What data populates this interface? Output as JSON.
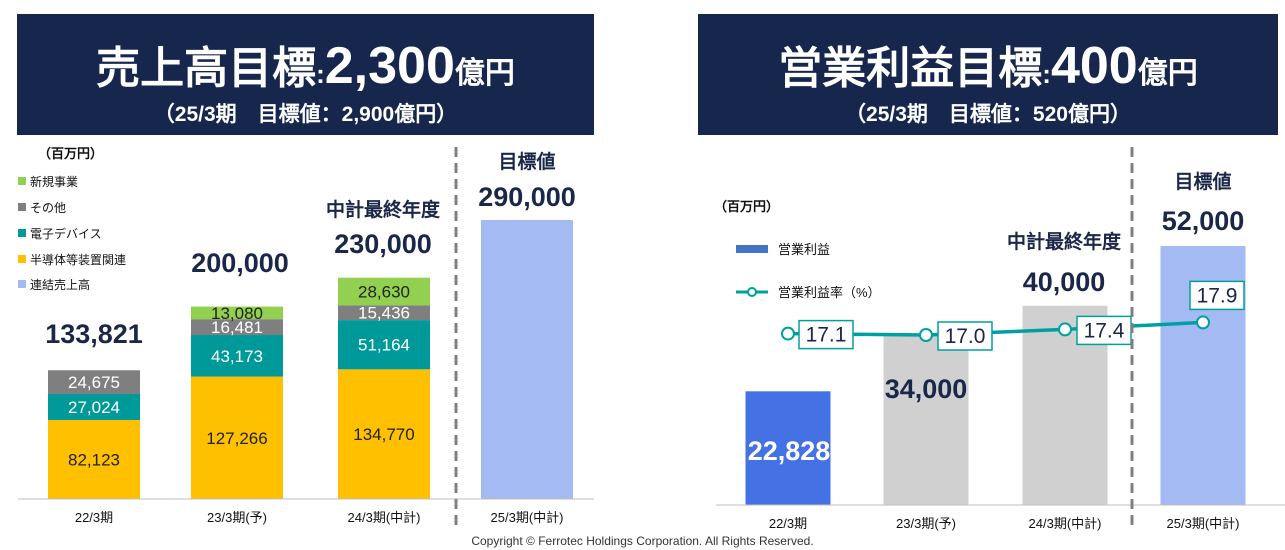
{
  "left_banner": {
    "title": "売上高目標",
    "sep": ":",
    "value": "2,300",
    "unit": "億円",
    "sub": "（25/3期　目標値：2,900億円）"
  },
  "right_banner": {
    "title": "営業利益目標",
    "sep": ":",
    "value": "400",
    "unit": "億円",
    "sub": "（25/3期　目標値：520億円）"
  },
  "footer": "Copyright © Ferrotec Holdings Corporation. All Rights Reserved.",
  "chart_data": [
    {
      "type": "bar",
      "stacked": true,
      "unit_label": "（百万円）",
      "categories": [
        "22/3期",
        "23/3期(予)",
        "24/3期(中計)",
        "25/3期(中計)"
      ],
      "series": [
        {
          "name": "半導体等装置関連",
          "color": "#ffc000",
          "values": [
            82123,
            127266,
            134770,
            null
          ]
        },
        {
          "name": "電子デバイス",
          "color": "#009999",
          "values": [
            27024,
            43173,
            51164,
            null
          ]
        },
        {
          "name": "その他",
          "color": "#7f7f7f",
          "values": [
            24675,
            16481,
            15436,
            null
          ]
        },
        {
          "name": "新規事業",
          "color": "#92d050",
          "values": [
            0,
            13080,
            28630,
            null
          ]
        },
        {
          "name": "連結売上高",
          "color": "#a4baf2",
          "values": [
            null,
            null,
            null,
            290000
          ]
        }
      ],
      "legend_order": [
        "新規事業",
        "その他",
        "電子デバイス",
        "半導体等装置関連",
        "連結売上高"
      ],
      "totals": [
        "133,821",
        "200,000",
        "230,000",
        "290,000"
      ],
      "annotations": {
        "midterm_final": "中計最終年度",
        "target": "目標値"
      },
      "ylim": [
        0,
        300000
      ]
    },
    {
      "type": "bar+line",
      "unit_label": "（百万円）",
      "categories": [
        "22/3期",
        "23/3期(予)",
        "24/3期(中計)",
        "25/3期(中計)"
      ],
      "bar_series": {
        "name": "営業利益",
        "values": [
          22828,
          34000,
          40000,
          52000
        ],
        "labels": [
          "22,828",
          "34,000",
          "40,000",
          "52,000"
        ],
        "colors": [
          "#4472e4",
          "#d0d0d0",
          "#d0d0d0",
          "#a4baf2"
        ]
      },
      "line_series": {
        "name": "営業利益率（%）",
        "color": "#00a0a0",
        "values": [
          17.1,
          17.0,
          17.4,
          17.9
        ]
      },
      "annotations": {
        "midterm_final": "中計最終年度",
        "target": "目標値"
      },
      "ylim": [
        0,
        55000
      ]
    }
  ]
}
